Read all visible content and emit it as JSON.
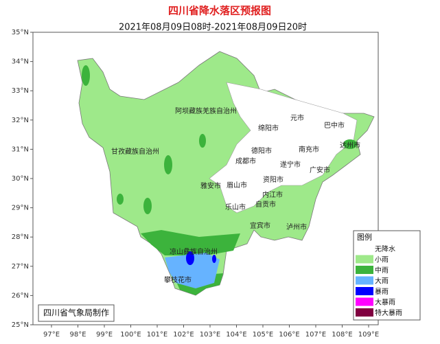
{
  "header": {
    "title": "四川省降水落区预报图",
    "subtitle": "2021年08月09日08时-2021年08月09日20时"
  },
  "lat_ticks": [
    "35°N",
    "34°N",
    "33°N",
    "32°N",
    "31°N",
    "30°N",
    "29°N",
    "28°N",
    "27°N",
    "26°N",
    "25°N"
  ],
  "lon_ticks": [
    "97°E",
    "98°E",
    "99°E",
    "100°E",
    "101°E",
    "102°E",
    "103°E",
    "104°E",
    "105°E",
    "106°E",
    "107°E",
    "108°E",
    "109°E"
  ],
  "cities": [
    "阿坝藏族羌族自治州",
    "甘孜藏族自治州",
    "绵阳市",
    "元市",
    "巴中市",
    "达州市",
    "德阳市",
    "南充市",
    "成都市",
    "遂宁市",
    "广安市",
    "雅安市",
    "眉山市",
    "资阳市",
    "乐山市",
    "内江市",
    "自贡市",
    "宜宾市",
    "泸州市",
    "凉山彝族自治州",
    "攀枝花市"
  ],
  "legend": {
    "title": "图例",
    "items": [
      "无降水",
      "小雨",
      "中雨",
      "大雨",
      "暴雨",
      "大暴雨",
      "特大暴雨"
    ]
  },
  "footer": "四川省气象局制作"
}
